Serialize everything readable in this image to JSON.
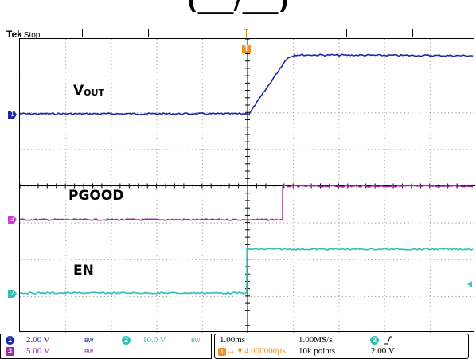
{
  "page_title_partial": "(___/___)",
  "scope": {
    "brand": "Tek",
    "acq_state": "Stop"
  },
  "colors": {
    "ch1": "#1a2aa8",
    "ch2": "#2fbfb5",
    "ch3": "#a02ba5",
    "trigger": "#f0901e"
  },
  "traces": {
    "vout_label_main": "V",
    "vout_label_sub": "OUT",
    "pgood_label": "PGOOD",
    "en_label": "EN"
  },
  "markers": {
    "ch1": "1",
    "ch2": "2",
    "ch3": "3",
    "trigger": "T"
  },
  "status_bar": {
    "ch1_num": "1",
    "ch1_scale": "2.00 V",
    "ch1_bw": "BW",
    "ch2_num": "2",
    "ch2_scale": "10.0 V",
    "ch2_bw": "BW",
    "ch3_num": "3",
    "ch3_scale": "5.00 V",
    "ch3_bw": "BW",
    "timebase": "1.00ms",
    "sample_rate": "1.00MS/s",
    "trigger_pos_icon": "T",
    "trigger_pos": "→▼4.000000µs",
    "record_length": "10k points",
    "trigger_source": "2",
    "trigger_slope_icon": "rising-edge-icon",
    "trigger_level": "2.00 V"
  }
}
